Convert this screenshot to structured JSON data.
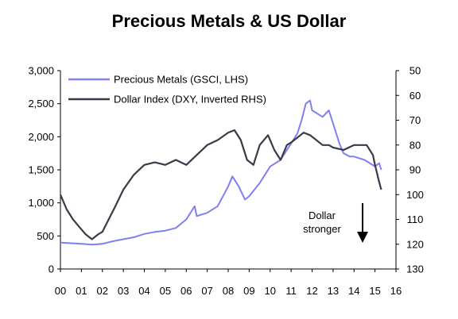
{
  "chart_data": {
    "type": "line",
    "title": "Precious Metals & US Dollar",
    "x_ticks": [
      "00",
      "01",
      "02",
      "03",
      "04",
      "05",
      "06",
      "07",
      "08",
      "09",
      "10",
      "11",
      "12",
      "13",
      "14",
      "15",
      "16"
    ],
    "x_range": [
      2000,
      2016
    ],
    "left_axis": {
      "range": [
        0,
        3000
      ],
      "ticks": [
        "0",
        "500",
        "1,000",
        "1,500",
        "2,000",
        "2,500",
        "3,000"
      ]
    },
    "right_axis": {
      "range": [
        50,
        130
      ],
      "inverted": true,
      "ticks": [
        "50",
        "60",
        "70",
        "80",
        "90",
        "100",
        "110",
        "120",
        "130"
      ]
    },
    "series": [
      {
        "name": "Precious Metals (GSCI, LHS)",
        "axis": "left",
        "color": "#8080f0",
        "x": [
          2000.0,
          2000.5,
          2001.0,
          2001.5,
          2002.0,
          2002.5,
          2003.0,
          2003.5,
          2004.0,
          2004.5,
          2005.0,
          2005.5,
          2006.0,
          2006.4,
          2006.5,
          2007.0,
          2007.5,
          2008.0,
          2008.2,
          2008.5,
          2008.8,
          2009.0,
          2009.5,
          2010.0,
          2010.5,
          2011.0,
          2011.3,
          2011.5,
          2011.7,
          2011.9,
          2012.0,
          2012.5,
          2012.8,
          2013.0,
          2013.3,
          2013.5,
          2013.8,
          2014.0,
          2014.5,
          2015.0,
          2015.2,
          2015.3
        ],
        "y": [
          400,
          390,
          380,
          370,
          380,
          420,
          450,
          480,
          530,
          560,
          580,
          620,
          750,
          950,
          800,
          850,
          950,
          1250,
          1400,
          1250,
          1050,
          1100,
          1300,
          1550,
          1650,
          1900,
          2050,
          2250,
          2500,
          2550,
          2400,
          2300,
          2400,
          2200,
          1900,
          1750,
          1700,
          1700,
          1650,
          1550,
          1600,
          1500
        ]
      },
      {
        "name": "Dollar Index (DXY, Inverted RHS)",
        "axis": "right",
        "color": "#3a3a48",
        "x": [
          2000.0,
          2000.3,
          2000.6,
          2000.9,
          2001.2,
          2001.5,
          2001.8,
          2002.0,
          2002.3,
          2002.6,
          2003.0,
          2003.5,
          2004.0,
          2004.5,
          2005.0,
          2005.5,
          2006.0,
          2006.5,
          2007.0,
          2007.5,
          2008.0,
          2008.3,
          2008.6,
          2008.9,
          2009.2,
          2009.5,
          2009.9,
          2010.2,
          2010.5,
          2010.8,
          2011.0,
          2011.3,
          2011.6,
          2011.9,
          2012.2,
          2012.5,
          2012.8,
          2013.0,
          2013.5,
          2014.0,
          2014.3,
          2014.6,
          2014.9,
          2015.0,
          2015.2,
          2015.3
        ],
        "y": [
          100,
          106,
          110,
          113,
          116,
          118,
          116,
          115,
          110,
          105,
          98,
          92,
          88,
          87,
          88,
          86,
          88,
          84,
          80,
          78,
          75,
          74,
          78,
          86,
          88,
          80,
          76,
          82,
          86,
          80,
          79,
          77,
          75,
          76,
          78,
          80,
          80,
          81,
          82,
          80,
          80,
          80,
          84,
          88,
          95,
          98
        ]
      }
    ],
    "legend_position": "top-left",
    "annotation": {
      "lines": [
        "Dollar",
        "stronger"
      ]
    },
    "grid": false
  }
}
